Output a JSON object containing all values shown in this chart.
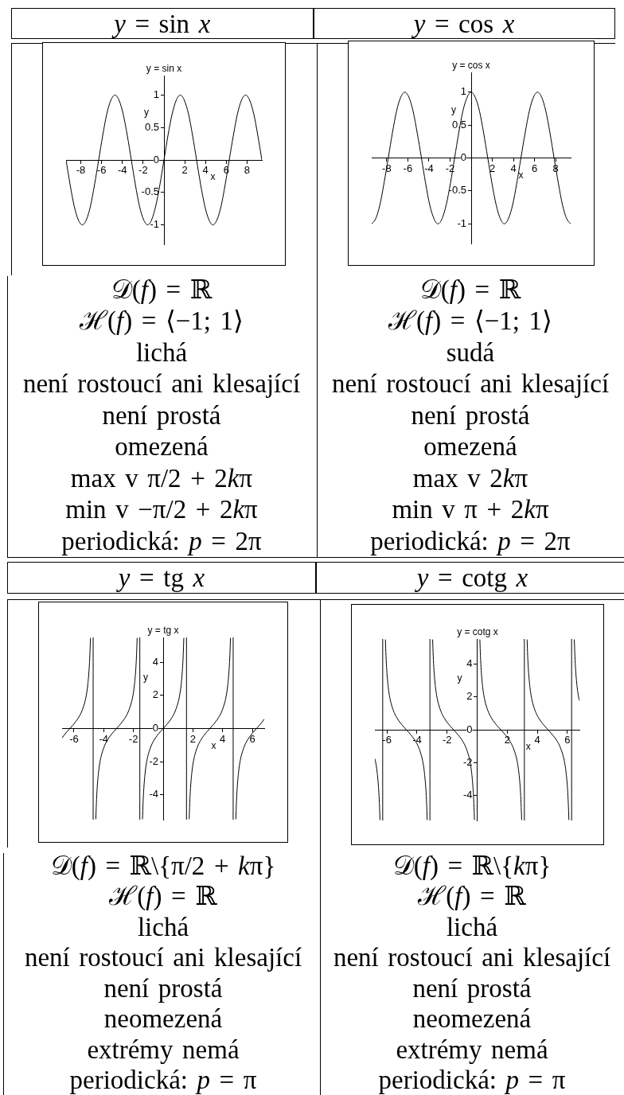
{
  "chart_data": [
    {
      "type": "line",
      "title": "y = sin x",
      "subtitle": "y = sin x",
      "xlabel": "x",
      "ylabel": "y",
      "color": "#000000",
      "x": [
        -9.42,
        -9.03,
        -8.64,
        -8.25,
        -7.85,
        -7.46,
        -7.07,
        -6.68,
        -6.28,
        -5.89,
        -5.5,
        -5.11,
        -4.71,
        -4.32,
        -3.93,
        -3.53,
        -3.14,
        -2.75,
        -2.36,
        -1.96,
        -1.57,
        -1.18,
        -0.79,
        -0.39,
        0,
        0.39,
        0.79,
        1.18,
        1.57,
        1.96,
        2.36,
        2.75,
        3.14,
        3.53,
        3.93,
        4.32,
        4.71,
        5.11,
        5.5,
        5.89,
        6.28,
        6.68,
        7.07,
        7.46,
        7.85,
        8.25,
        8.64,
        9.03,
        9.42
      ],
      "values": [
        0,
        -0.38,
        -0.71,
        -0.92,
        -1,
        -0.92,
        -0.71,
        -0.38,
        0,
        0.38,
        0.71,
        0.92,
        1,
        0.92,
        0.71,
        0.38,
        0,
        -0.38,
        -0.71,
        -0.92,
        -1,
        -0.92,
        -0.71,
        -0.38,
        0,
        0.38,
        0.71,
        0.92,
        1,
        0.92,
        0.71,
        0.38,
        0,
        -0.38,
        -0.71,
        -0.92,
        -1,
        -0.92,
        -0.71,
        -0.38,
        0,
        0.38,
        0.71,
        0.92,
        1,
        0.92,
        0.71,
        0.38,
        0
      ],
      "xlim": [
        -9.42,
        9.42
      ],
      "ylim": [
        -1.3,
        1.3
      ],
      "xticks": [
        -8,
        -6,
        -4,
        -2,
        2,
        4,
        6,
        8
      ],
      "yticks": [
        -1,
        -0.5,
        0,
        0.5,
        1
      ],
      "annotations": [
        "𝒟(f) = ℝ",
        "ℋ(f) = ⟨−1; 1⟩",
        "lichá",
        "není rostoucí ani klesající",
        "není prostá",
        "omezená",
        "max v π/2 + 2kπ",
        "min v −π/2 + 2kπ",
        "periodická: p = 2π"
      ]
    },
    {
      "type": "line",
      "title": "y = cos x",
      "subtitle": "y = cos x",
      "xlabel": "x",
      "ylabel": "y",
      "color": "#000000",
      "x": [
        -9.42,
        -9.03,
        -8.64,
        -8.25,
        -7.85,
        -7.46,
        -7.07,
        -6.68,
        -6.28,
        -5.89,
        -5.5,
        -5.11,
        -4.71,
        -4.32,
        -3.93,
        -3.53,
        -3.14,
        -2.75,
        -2.36,
        -1.96,
        -1.57,
        -1.18,
        -0.79,
        -0.39,
        0,
        0.39,
        0.79,
        1.18,
        1.57,
        1.96,
        2.36,
        2.75,
        3.14,
        3.53,
        3.93,
        4.32,
        4.71,
        5.11,
        5.5,
        5.89,
        6.28,
        6.68,
        7.07,
        7.46,
        7.85,
        8.25,
        8.64,
        9.03,
        9.42
      ],
      "values": [
        -1,
        -0.92,
        -0.71,
        -0.38,
        0,
        0.38,
        0.71,
        0.92,
        1,
        0.92,
        0.71,
        0.38,
        0,
        -0.38,
        -0.71,
        -0.92,
        -1,
        -0.92,
        -0.71,
        -0.38,
        0,
        0.38,
        0.71,
        0.92,
        1,
        0.92,
        0.71,
        0.38,
        0,
        -0.38,
        -0.71,
        -0.92,
        -1,
        -0.92,
        -0.71,
        -0.38,
        0,
        0.38,
        0.71,
        0.92,
        1,
        0.92,
        0.71,
        0.38,
        0,
        -0.38,
        -0.71,
        -0.92,
        -1
      ],
      "xlim": [
        -9.42,
        9.42
      ],
      "ylim": [
        -1.3,
        1.3
      ],
      "xticks": [
        -8,
        -6,
        -4,
        -2,
        2,
        4,
        6,
        8
      ],
      "yticks": [
        -1,
        -0.5,
        0,
        0.5,
        1
      ],
      "annotations": [
        "𝒟(f) = ℝ",
        "ℋ(f) = ⟨−1; 1⟩",
        "sudá",
        "není rostoucí ani klesající",
        "není prostá",
        "omezená",
        "max v 2kπ",
        "min v π + 2kπ",
        "periodická: p = 2π"
      ]
    },
    {
      "type": "line",
      "title": "y = tg x",
      "subtitle": "y = tg x",
      "xlabel": "x",
      "ylabel": "y",
      "color": "#000000",
      "x": [
        -6.8,
        -6.68,
        -6.48,
        -6.28,
        -6.08,
        -5.88,
        -5.68,
        -5.48,
        -5.28,
        -5.18,
        -5.08,
        -4.98,
        -4.93,
        -4.89,
        -4.71,
        -4.53,
        -4.49,
        -4.44,
        -4.34,
        -4.24,
        -4.14,
        -3.94,
        -3.74,
        -3.54,
        -3.34,
        -3.14,
        -2.94,
        -2.74,
        -2.54,
        -2.34,
        -2.14,
        -2.04,
        -1.94,
        -1.84,
        -1.79,
        -1.75,
        -1.57,
        -1.39,
        -1.35,
        -1.3,
        -1.2,
        -1.1,
        -1,
        -0.8,
        -0.6,
        -0.4,
        -0.2,
        0,
        0.2,
        0.4,
        0.6,
        0.8,
        1,
        1.1,
        1.2,
        1.3,
        1.35,
        1.39,
        1.57,
        1.75,
        1.79,
        1.84,
        1.94,
        2.04,
        2.14,
        2.34,
        2.54,
        2.74,
        2.94,
        3.14,
        3.34,
        3.54,
        3.74,
        3.94,
        4.14,
        4.24,
        4.34,
        4.44,
        4.49,
        4.53,
        4.71,
        4.89,
        4.93,
        4.98,
        5.08,
        5.18,
        5.28,
        5.48,
        5.68,
        5.88,
        6.08,
        6.28,
        6.48,
        6.68,
        6.8
      ],
      "values": [
        -0.57,
        -0.42,
        -0.2,
        0,
        0.2,
        0.42,
        0.68,
        1.03,
        1.56,
        1.96,
        2.57,
        3.6,
        4.46,
        5.47,
        null,
        -5.47,
        -4.46,
        -3.6,
        -2.57,
        -1.96,
        -1.56,
        -1.03,
        -0.68,
        -0.42,
        -0.2,
        0,
        0.2,
        0.42,
        0.68,
        1.03,
        1.56,
        1.96,
        2.57,
        3.6,
        4.46,
        5.47,
        null,
        -5.47,
        -4.46,
        -3.6,
        -2.57,
        -1.96,
        -1.56,
        -1.03,
        -0.68,
        -0.42,
        -0.2,
        0,
        0.2,
        0.42,
        0.68,
        1.03,
        1.56,
        1.96,
        2.57,
        3.6,
        4.46,
        5.47,
        null,
        -5.47,
        -4.46,
        -3.6,
        -2.57,
        -1.96,
        -1.56,
        -1.03,
        -0.68,
        -0.42,
        -0.2,
        0,
        0.2,
        0.42,
        0.68,
        1.03,
        1.56,
        1.96,
        2.57,
        3.6,
        4.46,
        5.47,
        null,
        -5.47,
        -4.46,
        -3.6,
        -2.57,
        -1.96,
        -1.56,
        -1.03,
        -0.68,
        -0.42,
        -0.2,
        0,
        0.2,
        0.42,
        0.57
      ],
      "xlim": [
        -6.8,
        6.8
      ],
      "ylim": [
        -5.5,
        5.5
      ],
      "xticks": [
        -6,
        -4,
        -2,
        2,
        4,
        6
      ],
      "yticks": [
        -4,
        -2,
        0,
        2,
        4
      ],
      "ref_lines": [
        {
          "axis": "x",
          "value": -4.71,
          "color": "#000000"
        },
        {
          "axis": "x",
          "value": -1.57,
          "color": "#000000"
        },
        {
          "axis": "x",
          "value": 1.57,
          "color": "#000000"
        },
        {
          "axis": "x",
          "value": 4.71,
          "color": "#000000"
        }
      ],
      "annotations": [
        "𝒟(f) = ℝ\\{π/2 + kπ}",
        "ℋ(f) = ℝ",
        "lichá",
        "není rostoucí ani klesající",
        "není prostá",
        "neomezená",
        "extrémy nemá",
        "periodická: p = π"
      ]
    },
    {
      "type": "line",
      "title": "y = cotg x",
      "subtitle": "y = cotg x",
      "xlabel": "x",
      "ylabel": "y",
      "color": "#000000",
      "x": [
        -6.8,
        -6.75,
        -6.65,
        -6.55,
        -6.5,
        -6.46,
        -6.28,
        -6.1,
        -6.06,
        -6.01,
        -5.91,
        -5.81,
        -5.71,
        -5.51,
        -5.31,
        -5.11,
        -4.91,
        -4.71,
        -4.51,
        -4.31,
        -4.11,
        -3.91,
        -3.71,
        -3.61,
        -3.51,
        -3.41,
        -3.36,
        -3.32,
        -3.14,
        -2.96,
        -2.92,
        -2.87,
        -2.77,
        -2.67,
        -2.57,
        -2.37,
        -2.17,
        -1.97,
        -1.77,
        -1.57,
        -1.37,
        -1.17,
        -0.97,
        -0.77,
        -0.57,
        -0.47,
        -0.37,
        -0.27,
        -0.22,
        -0.18,
        0,
        0.18,
        0.22,
        0.27,
        0.37,
        0.47,
        0.57,
        0.77,
        0.97,
        1.17,
        1.37,
        1.57,
        1.77,
        1.97,
        2.17,
        2.37,
        2.57,
        2.67,
        2.77,
        2.87,
        2.92,
        2.96,
        3.14,
        3.32,
        3.36,
        3.41,
        3.51,
        3.61,
        3.71,
        3.91,
        4.11,
        4.31,
        4.51,
        4.71,
        4.91,
        5.11,
        5.31,
        5.51,
        5.71,
        5.81,
        5.91,
        6.01,
        6.06,
        6.1,
        6.28,
        6.46,
        6.5,
        6.55,
        6.65,
        6.75,
        6.8
      ],
      "values": [
        -1.76,
        -1.96,
        -2.57,
        -3.6,
        -4.46,
        -5.47,
        null,
        5.47,
        4.46,
        3.6,
        2.57,
        1.96,
        1.56,
        1.03,
        0.68,
        0.42,
        0.2,
        0,
        -0.2,
        -0.42,
        -0.68,
        -1.03,
        -1.56,
        -1.96,
        -2.57,
        -3.6,
        -4.46,
        -5.47,
        null,
        5.47,
        4.46,
        3.6,
        2.57,
        1.96,
        1.56,
        1.03,
        0.68,
        0.42,
        0.2,
        0,
        -0.2,
        -0.42,
        -0.68,
        -1.03,
        -1.56,
        -1.96,
        -2.57,
        -3.6,
        -4.46,
        -5.47,
        null,
        5.47,
        4.46,
        3.6,
        2.57,
        1.96,
        1.56,
        1.03,
        0.68,
        0.42,
        0.2,
        0,
        -0.2,
        -0.42,
        -0.68,
        -1.03,
        -1.56,
        -1.96,
        -2.57,
        -3.6,
        -4.46,
        -5.47,
        null,
        5.47,
        4.46,
        3.6,
        2.57,
        1.96,
        1.56,
        1.03,
        0.68,
        0.42,
        0.2,
        0,
        -0.2,
        -0.42,
        -0.68,
        -1.03,
        -1.56,
        -1.96,
        -2.57,
        -3.6,
        -4.46,
        -5.47,
        null,
        5.47,
        4.46,
        3.6,
        2.57,
        1.96,
        1.76
      ],
      "xlim": [
        -6.8,
        6.8
      ],
      "ylim": [
        -5.5,
        5.5
      ],
      "xticks": [
        -6,
        -4,
        -2,
        2,
        4,
        6
      ],
      "yticks": [
        -4,
        -2,
        0,
        2,
        4
      ],
      "ref_lines": [
        {
          "axis": "x",
          "value": -6.28,
          "color": "#000000"
        },
        {
          "axis": "x",
          "value": -3.14,
          "color": "#000000"
        },
        {
          "axis": "x",
          "value": 3.14,
          "color": "#000000"
        },
        {
          "axis": "x",
          "value": 6.28,
          "color": "#000000"
        }
      ],
      "annotations": [
        "𝒟(f) = ℝ\\{kπ}",
        "ℋ(f) = ℝ",
        "lichá",
        "není rostoucí ani klesající",
        "není prostá",
        "neomezená",
        "extrémy nemá",
        "periodická: p = π"
      ]
    }
  ]
}
